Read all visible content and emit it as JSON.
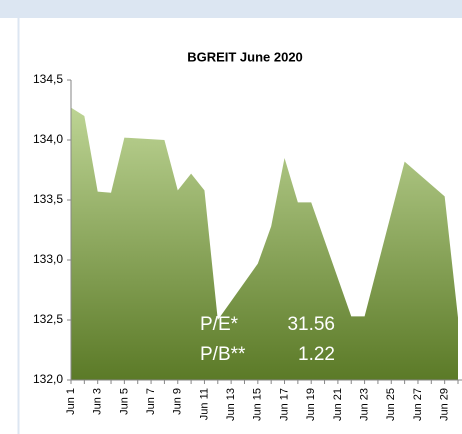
{
  "chart_data": {
    "type": "area",
    "title": "BGREIT June 2020",
    "categories": [
      "Jun 1",
      null,
      "Jun 3",
      null,
      "Jun 5",
      null,
      "Jun 7",
      null,
      "Jun 9",
      null,
      "Jun 11",
      null,
      "Jun 13",
      null,
      "Jun 15",
      null,
      "Jun 17",
      null,
      "Jun 19",
      null,
      "Jun 21",
      null,
      "Jun 23",
      null,
      "Jun 25",
      null,
      "Jun 27",
      null,
      "Jun 29",
      null
    ],
    "series": [
      {
        "name": "BGREIT",
        "color": "#7a9a3c",
        "values": [
          134.27,
          134.2,
          133.57,
          133.56,
          134.02,
          null,
          null,
          134.0,
          133.58,
          133.72,
          133.58,
          132.5,
          null,
          null,
          132.97,
          133.28,
          133.85,
          133.48,
          133.48,
          null,
          null,
          132.53,
          132.53,
          132.96,
          133.39,
          133.82,
          null,
          null,
          133.53,
          132.52
        ]
      }
    ],
    "ylim": [
      132.0,
      134.5
    ],
    "yticks": [
      {
        "value": 132.0,
        "label": "132,0"
      },
      {
        "value": 132.5,
        "label": "132,5"
      },
      {
        "value": 133.0,
        "label": "133,0"
      },
      {
        "value": 133.5,
        "label": "133,5"
      },
      {
        "value": 134.0,
        "label": "134,0"
      },
      {
        "value": 134.5,
        "label": "134,5"
      }
    ],
    "annotations": [
      "P/E*",
      "31.56",
      "P/B**",
      "1.22"
    ]
  }
}
